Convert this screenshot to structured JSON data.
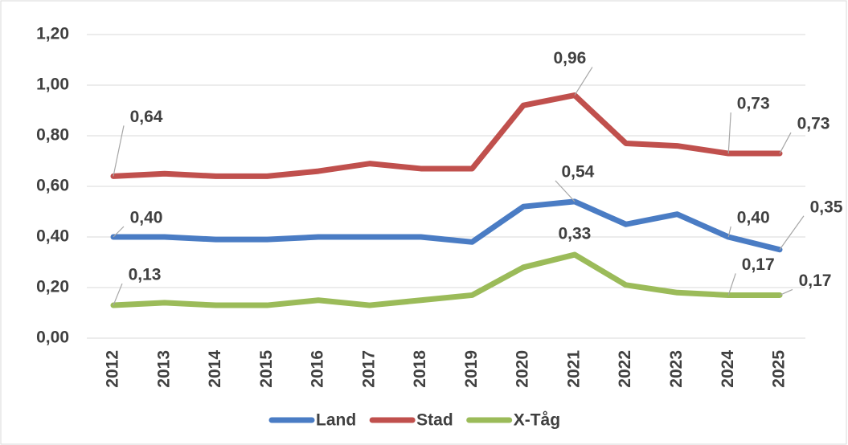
{
  "chart_data": {
    "type": "line",
    "categories": [
      "2012",
      "2013",
      "2014",
      "2015",
      "2016",
      "2017",
      "2018",
      "2019",
      "2020",
      "2021",
      "2022",
      "2023",
      "2024",
      "2025"
    ],
    "series": [
      {
        "name": "Land",
        "color": "#4a7cc4",
        "values": [
          0.4,
          0.4,
          0.39,
          0.39,
          0.4,
          0.4,
          0.4,
          0.38,
          0.52,
          0.54,
          0.45,
          0.49,
          0.4,
          0.35
        ],
        "value_labels": [
          "0,40",
          null,
          null,
          null,
          null,
          null,
          null,
          null,
          null,
          "0,54",
          null,
          null,
          "0,40",
          "0,35"
        ]
      },
      {
        "name": "Stad",
        "color": "#c0504d",
        "values": [
          0.64,
          0.65,
          0.64,
          0.64,
          0.66,
          0.69,
          0.67,
          0.67,
          0.92,
          0.96,
          0.77,
          0.76,
          0.73,
          0.73
        ],
        "value_labels": [
          "0,64",
          null,
          null,
          null,
          null,
          null,
          null,
          null,
          null,
          "0,96",
          null,
          null,
          "0,73",
          "0,73"
        ]
      },
      {
        "name": "X-Tåg",
        "color": "#9bbb59",
        "values": [
          0.13,
          0.14,
          0.13,
          0.13,
          0.15,
          0.13,
          0.15,
          0.17,
          0.28,
          0.33,
          0.21,
          0.18,
          0.17,
          0.17
        ],
        "value_labels": [
          "0,13",
          null,
          null,
          null,
          null,
          null,
          null,
          null,
          null,
          "0,33",
          null,
          null,
          "0,17",
          "0,17"
        ]
      }
    ],
    "ylim": [
      0,
      1.2
    ],
    "yticks": [
      {
        "value": 0,
        "label": "0,00"
      },
      {
        "value": 0.2,
        "label": "0,20"
      },
      {
        "value": 0.4,
        "label": "0,40"
      },
      {
        "value": 0.6,
        "label": "0,60"
      },
      {
        "value": 0.8,
        "label": "0,80"
      },
      {
        "value": 1.0,
        "label": "1,00"
      },
      {
        "value": 1.2,
        "label": "1,20"
      }
    ],
    "grid": true,
    "legend": "bottom"
  }
}
